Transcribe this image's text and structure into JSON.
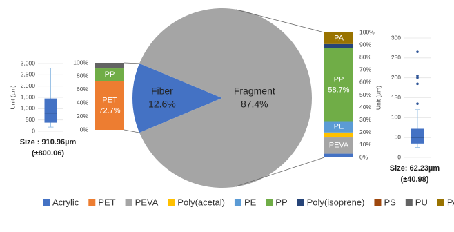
{
  "chart_data": [
    {
      "type": "box",
      "ylabel": "Unit (µm)",
      "ylim": [
        0,
        3000
      ],
      "yticks": [
        0,
        {
          "value": 500,
          "label": "500"
        },
        {
          "value": 1000,
          "label": "1,000"
        },
        {
          "value": 1500,
          "label": "1,500"
        },
        {
          "value": 2000,
          "label": "2,000"
        },
        {
          "value": 2500,
          "label": "2,500"
        },
        {
          "value": 3000,
          "label": "3,000"
        }
      ],
      "grid": true,
      "color": "#4472c4",
      "box": {
        "whisker_low": 180,
        "q1": 380,
        "median": 800,
        "q3": 1450,
        "whisker_high": 2800,
        "outliers": []
      },
      "annotations": [
        "Size : 910.96µm",
        "(±800.06)"
      ]
    },
    {
      "type": "stacked",
      "ylim": [
        0,
        100
      ],
      "yticks": [
        {
          "value": 0,
          "label": "0%"
        },
        {
          "value": 20,
          "label": "20%"
        },
        {
          "value": 40,
          "label": "40%"
        },
        {
          "value": 60,
          "label": "60%"
        },
        {
          "value": 80,
          "label": "80%"
        },
        {
          "value": 100,
          "label": "100%"
        }
      ],
      "series": [
        {
          "name": "PET",
          "color": "#ed7d31",
          "values": [
            72.7
          ],
          "value_labels": [
            "72.7%"
          ],
          "show_name": true
        },
        {
          "name": "PP",
          "color": "#70ad47",
          "values": [
            19
          ],
          "show_name": true
        },
        {
          "name": "PU",
          "color": "#636363",
          "values": [
            8.3
          ]
        }
      ]
    },
    {
      "type": "pie",
      "categories": [
        "Fiber",
        "Fragment"
      ],
      "values": [
        12.6,
        87.4
      ],
      "value_labels": [
        "12.6%",
        "87.4%"
      ],
      "colors": [
        "#4472c4",
        "#a5a5a5"
      ]
    },
    {
      "type": "stacked",
      "ylim": [
        0,
        100
      ],
      "yticks": [
        {
          "value": 0,
          "label": "0%"
        },
        {
          "value": 10,
          "label": "10%"
        },
        {
          "value": 20,
          "label": "20%"
        },
        {
          "value": 30,
          "label": "30%"
        },
        {
          "value": 40,
          "label": "40%"
        },
        {
          "value": 50,
          "label": "50%"
        },
        {
          "value": 60,
          "label": "60%"
        },
        {
          "value": 70,
          "label": "70%"
        },
        {
          "value": 80,
          "label": "80%"
        },
        {
          "value": 90,
          "label": "90%"
        },
        {
          "value": 100,
          "label": "100%"
        }
      ],
      "series": [
        {
          "name": "Acrylic",
          "color": "#4472c4",
          "values": [
            3
          ]
        },
        {
          "name": "PEVA",
          "color": "#a5a5a5",
          "values": [
            13
          ],
          "show_name": true
        },
        {
          "name": "Poly(acetal)",
          "color": "#ffc000",
          "values": [
            4
          ]
        },
        {
          "name": "PE",
          "color": "#5b9bd5",
          "values": [
            9
          ],
          "show_name": true
        },
        {
          "name": "PP",
          "color": "#70ad47",
          "values": [
            58.7
          ],
          "value_labels": [
            "58.7%"
          ],
          "show_name": true
        },
        {
          "name": "Poly(isoprene)",
          "color": "#264478",
          "values": [
            3
          ]
        },
        {
          "name": "PA",
          "color": "#997300",
          "values": [
            9.3
          ],
          "show_name": true
        }
      ]
    },
    {
      "type": "box",
      "ylabel": "Unit (µm)",
      "ylim": [
        0,
        300
      ],
      "yticks": [
        0,
        50,
        100,
        150,
        200,
        250,
        300
      ],
      "grid": true,
      "color": "#4472c4",
      "box": {
        "whisker_low": 25,
        "q1": 35,
        "median": 50,
        "q3": 72,
        "whisker_high": 120,
        "outliers": [
          135,
          185,
          200,
          205,
          265
        ]
      },
      "annotations": [
        "Size: 62.23µm",
        "(±40.98)"
      ]
    }
  ],
  "legend": [
    {
      "name": "Acrylic",
      "color": "#4472c4"
    },
    {
      "name": "PET",
      "color": "#ed7d31"
    },
    {
      "name": "PEVA",
      "color": "#a5a5a5"
    },
    {
      "name": "Poly(acetal)",
      "color": "#ffc000"
    },
    {
      "name": "PE",
      "color": "#5b9bd5"
    },
    {
      "name": "PP",
      "color": "#70ad47"
    },
    {
      "name": "Poly(isoprene)",
      "color": "#264478"
    },
    {
      "name": "PS",
      "color": "#9e480e"
    },
    {
      "name": "PU",
      "color": "#636363"
    },
    {
      "name": "PA",
      "color": "#997300"
    }
  ]
}
